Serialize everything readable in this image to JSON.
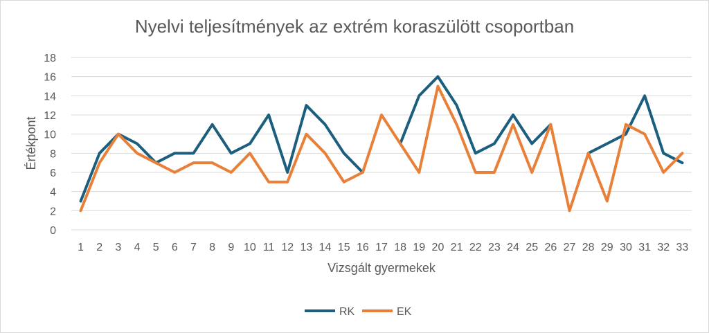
{
  "chart_data": {
    "type": "line",
    "title": "Nyelvi teljesítmények az extrém koraszülött csoportban",
    "xlabel": "Vizsgált gyermekek",
    "ylabel": "Értékpont",
    "ylim": [
      0,
      18
    ],
    "ytick_step": 2,
    "grid": true,
    "legend_position": "bottom",
    "categories": [
      "1",
      "2",
      "3",
      "4",
      "5",
      "6",
      "7",
      "8",
      "9",
      "10",
      "11",
      "12",
      "13",
      "14",
      "15",
      "16",
      "17",
      "18",
      "19",
      "20",
      "21",
      "22",
      "23",
      "24",
      "25",
      "26",
      "27",
      "28",
      "29",
      "30",
      "31",
      "32",
      "33"
    ],
    "series": [
      {
        "name": "RK",
        "color": "#1b5e7e",
        "values": [
          3,
          8,
          10,
          9,
          7,
          8,
          8,
          11,
          8,
          9,
          12,
          6,
          13,
          11,
          8,
          6,
          null,
          9,
          14,
          16,
          13,
          8,
          9,
          12,
          9,
          11,
          null,
          8,
          9,
          10,
          14,
          8,
          7
        ]
      },
      {
        "name": "EK",
        "color": "#e8803a",
        "values": [
          2,
          7,
          10,
          8,
          7,
          6,
          7,
          7,
          6,
          8,
          5,
          5,
          10,
          8,
          5,
          6,
          12,
          9,
          6,
          15,
          11,
          6,
          6,
          11,
          6,
          11,
          2,
          8,
          3,
          11,
          10,
          6,
          8
        ]
      }
    ]
  }
}
